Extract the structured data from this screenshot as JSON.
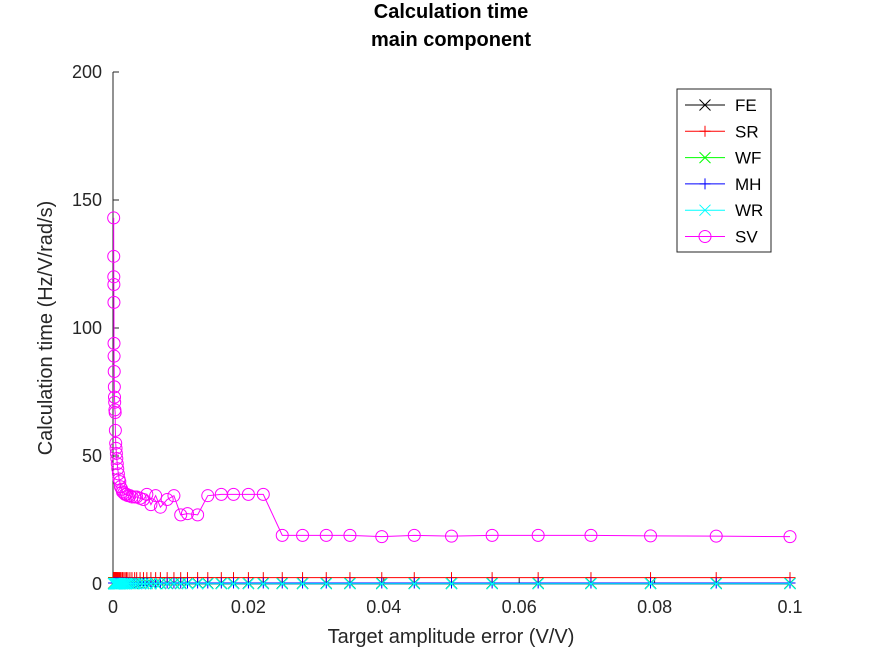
{
  "chart_data": {
    "type": "line",
    "title": "Calculation time",
    "subtitle": "main component",
    "xlabel": "Target amplitude error (V/V)",
    "ylabel": "Calculation time (Hz/V/rad/s)",
    "xlim": [
      0,
      0.1
    ],
    "ylim": [
      0,
      200
    ],
    "xticks": [
      0,
      0.02,
      0.04,
      0.06,
      0.08,
      0.1
    ],
    "xtick_labels": [
      "0",
      "0.02",
      "0.04",
      "0.06",
      "0.08",
      "0.1"
    ],
    "yticks": [
      0,
      50,
      100,
      150,
      200
    ],
    "ytick_labels": [
      "0",
      "50",
      "100",
      "150",
      "200"
    ],
    "grid": false,
    "legend_position": "top-right",
    "x": [
      0.0001,
      0.00011,
      0.00012,
      0.00013,
      0.00014,
      0.00015,
      0.00016,
      0.00018,
      0.0002,
      0.00022,
      0.00025,
      0.00028,
      0.00032,
      0.00035,
      0.0004,
      0.00045,
      0.0005,
      0.00056,
      0.00063,
      0.0007,
      0.0008,
      0.0009,
      0.001,
      0.0011,
      0.0013,
      0.0014,
      0.0016,
      0.0018,
      0.002,
      0.0022,
      0.0025,
      0.0028,
      0.0032,
      0.0035,
      0.004,
      0.0045,
      0.005,
      0.0056,
      0.0063,
      0.007,
      0.008,
      0.009,
      0.01,
      0.011,
      0.0125,
      0.014,
      0.016,
      0.0178,
      0.02,
      0.0222,
      0.025,
      0.028,
      0.0315,
      0.035,
      0.0397,
      0.0445,
      0.05,
      0.056,
      0.0628,
      0.0706,
      0.0794,
      0.0891,
      0.1
    ],
    "series": [
      {
        "name": "FE",
        "color": "#000000",
        "marker": "x",
        "values": [
          0.3,
          0.3,
          0.3,
          0.3,
          0.3,
          0.3,
          0.3,
          0.3,
          0.3,
          0.3,
          0.3,
          0.3,
          0.3,
          0.3,
          0.3,
          0.3,
          0.3,
          0.3,
          0.3,
          0.3,
          0.3,
          0.3,
          0.3,
          0.3,
          0.3,
          0.3,
          0.3,
          0.3,
          0.3,
          0.3,
          0.3,
          0.3,
          0.3,
          0.3,
          0.3,
          0.3,
          0.3,
          0.3,
          0.3,
          0.3,
          0.3,
          0.3,
          0.3,
          0.3,
          0.3,
          0.3,
          0.3,
          0.3,
          0.3,
          0.3,
          0.3,
          0.3,
          0.3,
          0.3,
          0.3,
          0.3,
          0.3,
          0.3,
          0.3,
          0.3,
          0.3,
          0.3,
          0.3
        ]
      },
      {
        "name": "SR",
        "color": "#ff0000",
        "marker": "+",
        "values": [
          2.5,
          2.5,
          2.5,
          2.5,
          2.5,
          2.5,
          2.5,
          2.5,
          2.5,
          2.5,
          2.5,
          2.5,
          2.5,
          2.5,
          2.5,
          2.5,
          2.5,
          2.5,
          2.5,
          2.5,
          2.5,
          2.5,
          2.5,
          2.5,
          2.5,
          2.5,
          2.5,
          2.5,
          2.5,
          2.5,
          2.5,
          2.5,
          2.5,
          2.5,
          2.5,
          2.5,
          2.5,
          2.5,
          2.5,
          2.5,
          2.5,
          2.5,
          2.5,
          2.5,
          2.5,
          2.5,
          2.5,
          2.5,
          2.5,
          2.5,
          2.5,
          2.5,
          2.5,
          2.5,
          2.5,
          2.5,
          2.5,
          2.5,
          2.5,
          2.5,
          2.5,
          2.5,
          2.5
        ]
      },
      {
        "name": "WF",
        "color": "#00ff00",
        "marker": "x",
        "values": [
          0.2,
          0.2,
          0.2,
          0.2,
          0.2,
          0.2,
          0.2,
          0.2,
          0.2,
          0.2,
          0.2,
          0.2,
          0.2,
          0.2,
          0.2,
          0.2,
          0.2,
          0.2,
          0.2,
          0.2,
          0.2,
          0.2,
          0.2,
          0.2,
          0.2,
          0.2,
          0.2,
          0.2,
          0.2,
          0.2,
          0.2,
          0.2,
          0.2,
          0.2,
          0.2,
          0.2,
          0.2,
          0.2,
          0.2,
          0.2,
          0.2,
          0.2,
          0.2,
          0.2,
          0.2,
          0.2,
          0.2,
          0.2,
          0.2,
          0.2,
          0.2,
          0.2,
          0.2,
          0.2,
          0.2,
          0.2,
          0.2,
          0.2,
          0.2,
          0.2,
          0.2,
          0.2,
          0.2
        ]
      },
      {
        "name": "MH",
        "color": "#0000ff",
        "marker": "+",
        "values": [
          0.4,
          0.4,
          0.4,
          0.4,
          0.4,
          0.4,
          0.4,
          0.4,
          0.4,
          0.4,
          0.4,
          0.4,
          0.4,
          0.4,
          0.4,
          0.4,
          0.4,
          0.4,
          0.4,
          0.4,
          0.4,
          0.4,
          0.4,
          0.4,
          0.4,
          0.4,
          0.4,
          0.4,
          0.4,
          0.4,
          0.4,
          0.4,
          0.4,
          0.4,
          0.4,
          0.4,
          0.4,
          0.4,
          0.4,
          0.4,
          0.4,
          0.4,
          0.4,
          0.4,
          0.4,
          0.4,
          0.4,
          0.4,
          0.4,
          0.4,
          0.4,
          0.4,
          0.4,
          0.4,
          0.4,
          0.4,
          0.4,
          0.4,
          0.4,
          0.4,
          0.4,
          0.4,
          0.4
        ]
      },
      {
        "name": "WR",
        "color": "#00ffff",
        "marker": "x",
        "values": [
          0.1,
          0.1,
          0.1,
          0.1,
          0.1,
          0.1,
          0.1,
          0.1,
          0.1,
          0.1,
          0.1,
          0.1,
          0.1,
          0.1,
          0.1,
          0.1,
          0.1,
          0.1,
          0.1,
          0.1,
          0.1,
          0.1,
          0.1,
          0.1,
          0.1,
          0.1,
          0.1,
          0.1,
          0.1,
          0.1,
          0.1,
          0.1,
          0.1,
          0.1,
          0.1,
          0.1,
          0.1,
          0.1,
          0.1,
          0.1,
          0.1,
          0.1,
          0.1,
          0.1,
          0.1,
          0.1,
          0.1,
          0.1,
          0.1,
          0.1,
          0.1,
          0.1,
          0.1,
          0.1,
          0.1,
          0.1,
          0.1,
          0.1,
          0.1,
          0.1,
          0.1,
          0.1,
          0.1
        ]
      },
      {
        "name": "SV",
        "color": "#ff00ff",
        "marker": "o",
        "values": [
          143,
          128,
          120,
          117,
          110,
          94,
          89,
          83,
          77,
          73,
          71,
          68,
          67,
          60,
          55,
          53,
          51,
          49,
          47,
          45,
          43,
          41,
          40,
          38,
          37,
          36,
          35.5,
          35,
          35,
          34.5,
          34.5,
          34,
          34,
          34,
          33.5,
          33,
          35,
          31,
          34.5,
          30,
          33,
          34.5,
          27,
          27.5,
          27,
          34.5,
          35,
          35,
          35,
          35,
          19,
          19,
          19,
          19,
          18.5,
          19,
          18.7,
          19,
          19,
          19,
          18.8,
          18.7,
          18.5
        ]
      }
    ]
  }
}
